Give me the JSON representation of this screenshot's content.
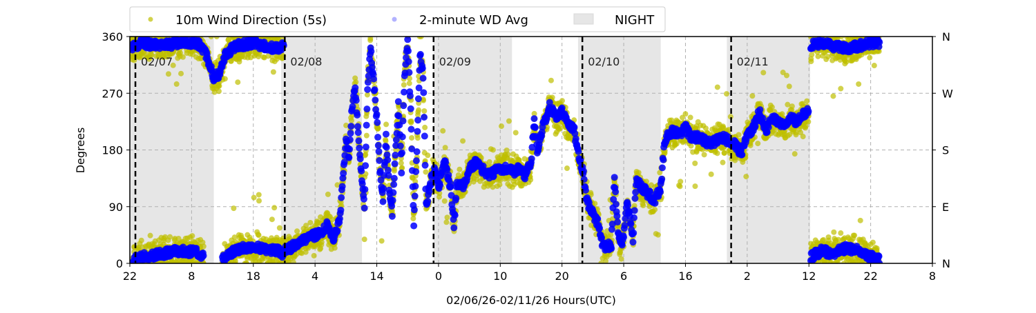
{
  "chart_data": {
    "type": "scatter",
    "title": "",
    "xlabel": "02/06/26-02/11/26  Hours(UTC)",
    "ylabel": "Degrees",
    "x_unit": "hours since 02/06/26 00:00 UTC",
    "xlim": [
      22,
      152
    ],
    "ylim": [
      0,
      360
    ],
    "grid": true,
    "legend_placement": "top-center (above plot)",
    "x_ticks": [
      22,
      32,
      42,
      52,
      62,
      72,
      82,
      92,
      102,
      112,
      122,
      132,
      142,
      152
    ],
    "x_tick_labels": [
      "22",
      "8",
      "18",
      "4",
      "14",
      "0",
      "10",
      "20",
      "6",
      "16",
      "2",
      "12",
      "22",
      "8"
    ],
    "y_ticks": [
      0,
      90,
      180,
      270,
      360
    ],
    "y_tick_labels": [
      "0",
      "90",
      "180",
      "270",
      "360"
    ],
    "y2_tick_labels": [
      "N",
      "E",
      "S",
      "W",
      "N"
    ],
    "legend": {
      "wd5s": "10m Wind Direction (5s)",
      "avg": "2-minute WD Avg",
      "night": "NIGHT"
    },
    "colors": {
      "wd5s": "#bfbf00",
      "avg": "#0000ff",
      "night": "#e6e6e6",
      "date_line": "#000000"
    },
    "date_markers": [
      {
        "hour": 22.9,
        "label": "02/07"
      },
      {
        "hour": 47.1,
        "label": "02/08"
      },
      {
        "hour": 71.2,
        "label": "02/09"
      },
      {
        "hour": 95.3,
        "label": "02/10"
      },
      {
        "hour": 119.4,
        "label": "02/11"
      }
    ],
    "night_periods": [
      [
        22,
        35.6
      ],
      [
        46.5,
        59.6
      ],
      [
        71.2,
        83.9
      ],
      [
        94.6,
        108.0
      ],
      [
        118.7,
        132.2
      ]
    ],
    "wd5s_spread_deg": 28,
    "series_segments": [
      [
        [
          22,
          340
        ],
        [
          24,
          350
        ],
        [
          27,
          345
        ],
        [
          30,
          350
        ],
        [
          33,
          350
        ],
        [
          34.5,
          330
        ],
        [
          35.5,
          295
        ],
        [
          36.5,
          300
        ],
        [
          37.5,
          330
        ],
        [
          39,
          345
        ],
        [
          42,
          350
        ],
        [
          44,
          345
        ],
        [
          46,
          340
        ],
        [
          47,
          350
        ]
      ],
      [
        [
          22.5,
          5
        ],
        [
          24,
          10
        ],
        [
          27,
          15
        ],
        [
          30,
          20
        ],
        [
          33,
          18
        ],
        [
          34,
          10
        ]
      ],
      [
        [
          37,
          5
        ],
        [
          38,
          15
        ],
        [
          40,
          25
        ],
        [
          43,
          25
        ],
        [
          46,
          20
        ],
        [
          47,
          15
        ]
      ],
      [
        [
          47,
          20
        ],
        [
          49,
          30
        ],
        [
          51,
          40
        ],
        [
          53,
          50
        ],
        [
          54,
          60
        ],
        [
          55,
          40
        ],
        [
          56,
          70
        ],
        [
          56.5,
          130
        ],
        [
          57,
          200
        ],
        [
          57.5,
          170
        ],
        [
          58,
          250
        ],
        [
          58.5,
          280
        ],
        [
          59,
          210
        ],
        [
          59.5,
          140
        ],
        [
          60,
          90
        ],
        [
          60.5,
          280
        ],
        [
          61,
          340
        ],
        [
          61.5,
          290
        ],
        [
          62,
          230
        ],
        [
          62.5,
          150
        ],
        [
          63,
          100
        ],
        [
          63.5,
          200
        ],
        [
          64,
          120
        ],
        [
          64.5,
          80
        ],
        [
          65,
          170
        ],
        [
          65.5,
          250
        ],
        [
          66,
          150
        ],
        [
          66.5,
          300
        ],
        [
          67,
          355
        ],
        [
          67.5,
          240
        ],
        [
          68,
          60
        ],
        [
          68.5,
          180
        ],
        [
          69,
          330
        ],
        [
          69.5,
          300
        ],
        [
          70,
          90
        ],
        [
          70.5,
          120
        ],
        [
          71,
          140
        ],
        [
          71.5,
          150
        ],
        [
          72,
          120
        ],
        [
          72.5,
          140
        ],
        [
          73,
          160
        ],
        [
          74,
          120
        ],
        [
          74.5,
          60
        ],
        [
          75,
          130
        ],
        [
          76,
          120
        ],
        [
          77,
          150
        ],
        [
          78,
          160
        ],
        [
          79,
          150
        ],
        [
          80,
          140
        ],
        [
          81,
          145
        ],
        [
          82,
          150
        ],
        [
          83,
          150
        ],
        [
          84,
          145
        ],
        [
          85,
          150
        ],
        [
          86,
          140
        ],
        [
          87,
          160
        ],
        [
          87.5,
          230
        ],
        [
          88,
          180
        ],
        [
          89,
          220
        ],
        [
          90,
          250
        ],
        [
          91,
          230
        ],
        [
          92,
          240
        ],
        [
          93,
          220
        ],
        [
          94,
          210
        ],
        [
          94.5,
          180
        ],
        [
          95,
          160
        ],
        [
          95.5,
          140
        ],
        [
          96,
          100
        ],
        [
          97,
          80
        ],
        [
          98,
          60
        ],
        [
          98.5,
          30
        ],
        [
          99,
          25
        ],
        [
          100,
          30
        ],
        [
          100.5,
          140
        ],
        [
          101,
          60
        ],
        [
          101.5,
          30
        ],
        [
          102,
          40
        ],
        [
          102.5,
          100
        ],
        [
          103,
          70
        ],
        [
          103.5,
          40
        ],
        [
          104,
          130
        ],
        [
          105,
          120
        ],
        [
          106,
          110
        ],
        [
          107,
          100
        ],
        [
          108,
          120
        ],
        [
          108.5,
          180
        ],
        [
          109,
          200
        ],
        [
          110,
          210
        ],
        [
          111,
          205
        ],
        [
          112,
          215
        ],
        [
          113,
          200
        ],
        [
          114,
          200
        ],
        [
          115,
          195
        ],
        [
          116,
          190
        ],
        [
          117,
          195
        ],
        [
          118,
          200
        ],
        [
          119,
          195
        ],
        [
          120,
          190
        ],
        [
          121,
          175
        ],
        [
          122,
          200
        ],
        [
          123,
          215
        ],
        [
          124,
          240
        ],
        [
          125,
          210
        ],
        [
          126,
          230
        ],
        [
          127,
          225
        ],
        [
          128,
          220
        ],
        [
          129,
          230
        ],
        [
          130,
          225
        ],
        [
          131,
          235
        ],
        [
          132,
          245
        ]
      ],
      [
        [
          132.3,
          345
        ],
        [
          134,
          350
        ],
        [
          136,
          345
        ],
        [
          138,
          340
        ],
        [
          140,
          345
        ],
        [
          142,
          350
        ],
        [
          143.5,
          350
        ]
      ],
      [
        [
          132.3,
          10
        ],
        [
          134,
          20
        ],
        [
          136,
          15
        ],
        [
          138,
          25
        ],
        [
          140,
          20
        ],
        [
          142,
          10
        ],
        [
          143.5,
          5
        ]
      ]
    ]
  }
}
